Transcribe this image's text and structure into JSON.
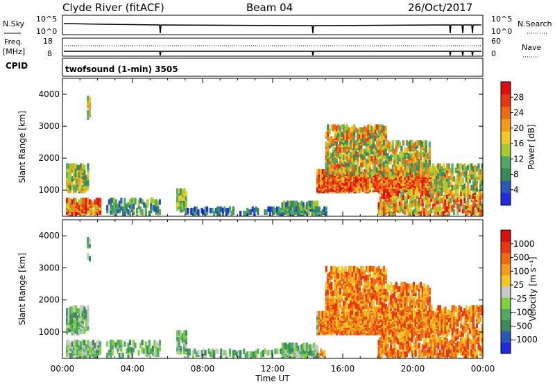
{
  "header": {
    "station": "Clyde River (fitACF)",
    "beam": "Beam 04",
    "date": "26/Oct/2017"
  },
  "top_panels": {
    "nsky_label": "N.Sky",
    "nsearch_label": "N.Search",
    "nsky_ticks": [
      "10^5",
      "10^0"
    ],
    "nsearch_ticks": [
      "10^5",
      "10^0"
    ],
    "freq_label": "Freq.",
    "freq_unit": "[MHz]",
    "freq_ticks": [
      "18",
      "8"
    ],
    "nave_label": "Nave",
    "nave_ticks": [
      "60",
      "0"
    ],
    "cpid_label": "CPID",
    "cpid_value": "twofsound (1-min) 3505"
  },
  "colors": {
    "power": [
      "#1f2bdc",
      "#2a56b8",
      "#3a8a5a",
      "#4fa864",
      "#a8c832",
      "#f0c828",
      "#f49a1e",
      "#ee6a14",
      "#e63812",
      "#d81010"
    ],
    "velocity": [
      "#1f2bdc",
      "#2a56b8",
      "#3a8a5a",
      "#4fa864",
      "#7dd040",
      "#c8c8c8",
      "#f0c828",
      "#f49a1e",
      "#ee6a14",
      "#e63812",
      "#d81010"
    ]
  },
  "chart_data": [
    {
      "type": "heatmap",
      "name": "power",
      "ylabel": "Slant Range [km]",
      "yticks": [
        "1000",
        "2000",
        "3000",
        "4000"
      ],
      "ylim": [
        180,
        4500
      ],
      "xlim": [
        0,
        24
      ],
      "colorbar_label": "Power [dB]",
      "colorbar_ticks": [
        "28",
        "24",
        "20",
        "16",
        "12",
        "8",
        "4"
      ],
      "colorbar_range": [
        0,
        32
      ]
    },
    {
      "type": "heatmap",
      "name": "velocity",
      "ylabel": "Slant Range [km]",
      "yticks": [
        "1000",
        "2000",
        "3000",
        "4000"
      ],
      "ylim": [
        180,
        4500
      ],
      "xlim": [
        0,
        24
      ],
      "colorbar_label": "Velocity [m s⁻¹]",
      "colorbar_ticks": [
        "1000",
        "500",
        "100",
        "25",
        "-25",
        "-100",
        "-500",
        "-1000"
      ]
    }
  ],
  "xaxis": {
    "ticks": [
      "00:00",
      "04:00",
      "08:00",
      "12:00",
      "16:00",
      "20:00",
      "00:00"
    ],
    "label": "Time UT"
  }
}
